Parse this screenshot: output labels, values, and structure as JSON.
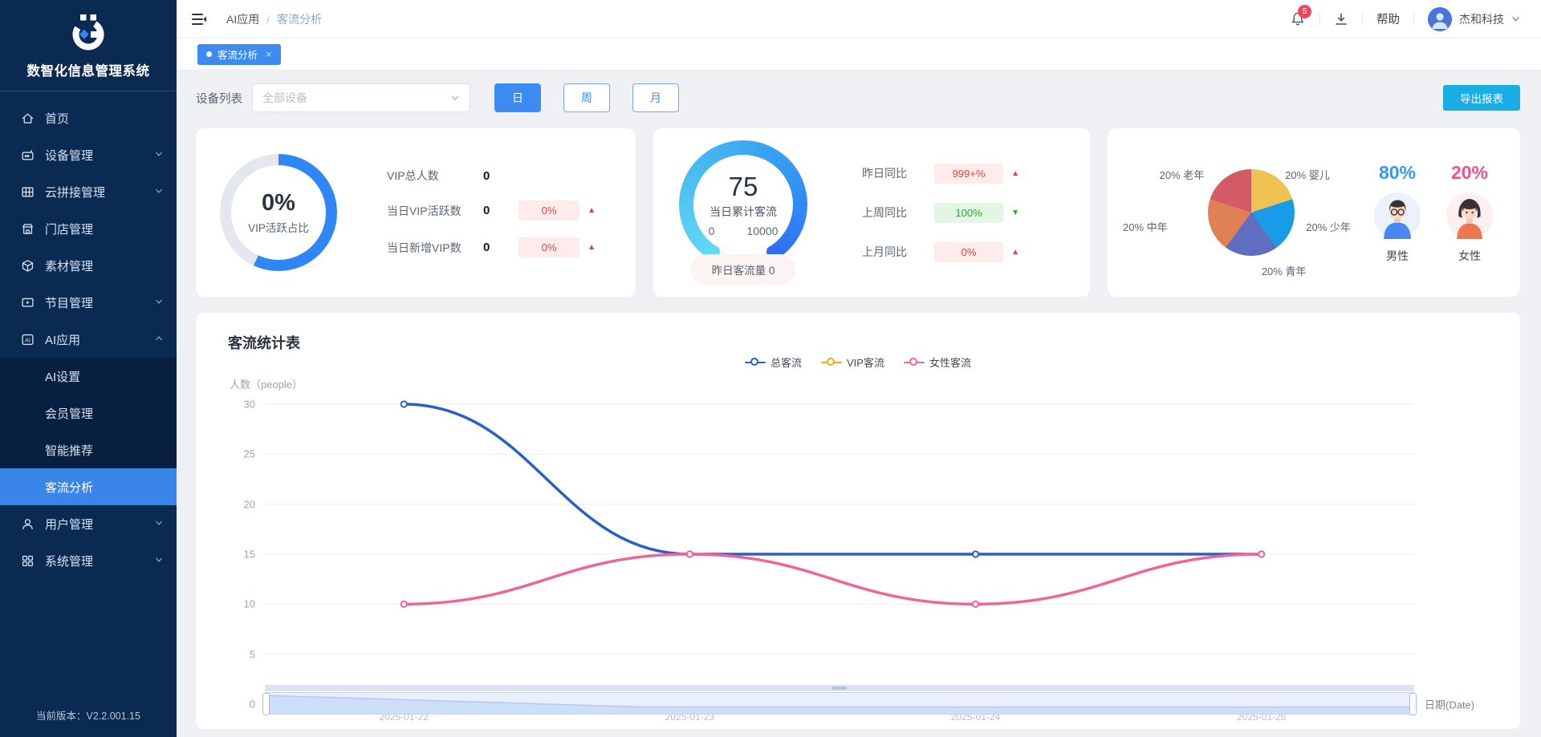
{
  "app": {
    "title": "数智化信息管理系统",
    "version_label": "当前版本：V2.2.001.15"
  },
  "sidebar": {
    "items": [
      {
        "key": "home",
        "label": "首页",
        "icon": "home"
      },
      {
        "key": "device",
        "label": "设备管理",
        "icon": "device",
        "chevron": "down"
      },
      {
        "key": "cloud-splice",
        "label": "云拼接管理",
        "icon": "grid",
        "chevron": "down"
      },
      {
        "key": "store",
        "label": "门店管理",
        "icon": "store"
      },
      {
        "key": "material",
        "label": "素材管理",
        "icon": "cube"
      },
      {
        "key": "program",
        "label": "节目管理",
        "icon": "screen",
        "chevron": "down"
      },
      {
        "key": "ai-app",
        "label": "AI应用",
        "icon": "ai",
        "chevron": "up",
        "expanded": true,
        "children": [
          {
            "key": "ai-settings",
            "label": "AI设置"
          },
          {
            "key": "member",
            "label": "会员管理"
          },
          {
            "key": "smart-recommend",
            "label": "智能推荐"
          },
          {
            "key": "flow-analysis",
            "label": "客流分析",
            "active": true
          }
        ]
      },
      {
        "key": "user",
        "label": "用户管理",
        "icon": "person",
        "chevron": "down"
      },
      {
        "key": "system",
        "label": "系统管理",
        "icon": "squares",
        "chevron": "down"
      }
    ]
  },
  "header": {
    "breadcrumb": {
      "parent": "AI应用",
      "separator": "/",
      "current": "客流分析"
    },
    "notification_count": "5",
    "help_label": "帮助",
    "company_name": "杰和科技"
  },
  "tabbar": {
    "active_tab": "客流分析"
  },
  "filters": {
    "device_label": "设备列表",
    "device_placeholder": "全部设备",
    "periods": [
      "日",
      "周",
      "月"
    ],
    "active_period": "日",
    "export_label": "导出报表"
  },
  "cards": {
    "vip": {
      "ring_percent": "0%",
      "ring_caption": "VIP活跃占比",
      "rows": [
        {
          "label": "VIP总人数",
          "value": "0"
        },
        {
          "label": "当日VIP活跃数",
          "value": "0",
          "badge": "0%",
          "trend": "up"
        },
        {
          "label": "当日新增VIP数",
          "value": "0",
          "badge": "0%",
          "trend": "up"
        }
      ]
    },
    "gauge": {
      "value": "75",
      "caption": "当日累计客流",
      "min": "0",
      "max": "10000",
      "yesterday_pill": "昨日客流量 0",
      "rows": [
        {
          "label": "昨日同比",
          "badge": "999+%",
          "trend": "up"
        },
        {
          "label": "上周同比",
          "badge": "100%",
          "trend": "down"
        },
        {
          "label": "上月同比",
          "badge": "0%",
          "trend": "up"
        }
      ]
    },
    "demographics": {
      "male": {
        "pct": "80%",
        "label": "男性"
      },
      "female": {
        "pct": "20%",
        "label": "女性"
      }
    }
  },
  "chart_data": [
    {
      "type": "line",
      "title": "客流统计表",
      "x": [
        "2025-01-22",
        "2025-01-23",
        "2025-01-24",
        "2025-01-25"
      ],
      "series": [
        {
          "name": "总客流",
          "color": "#2b5fc8",
          "values": [
            30,
            15,
            15,
            15
          ]
        },
        {
          "name": "VIP客流",
          "color": "#f0ab1c",
          "values": [
            0,
            0,
            0,
            0
          ]
        },
        {
          "name": "女性客流",
          "color": "#ee6598",
          "values": [
            10,
            15,
            10,
            15
          ]
        }
      ],
      "ylabel": "人数（people）",
      "xlabel": "日期(Date)",
      "ylim": [
        0,
        30
      ],
      "yticks": [
        0,
        5,
        10,
        15,
        20,
        25,
        30
      ],
      "smooth": true,
      "grid": true,
      "legend_position": "top",
      "has_datazoom_slider": true
    },
    {
      "type": "pie",
      "labels": [
        "婴儿",
        "少年",
        "青年",
        "中年",
        "老年"
      ],
      "values": [
        20,
        20,
        20,
        20,
        20
      ],
      "unit": "%",
      "colors": [
        "#eec353",
        "#189ce8",
        "#5f6ec2",
        "#e08056",
        "#d25b66"
      ],
      "display_labels": [
        "20% 婴儿",
        "20% 少年",
        "20% 青年",
        "20% 中年",
        "20% 老年"
      ]
    }
  ]
}
